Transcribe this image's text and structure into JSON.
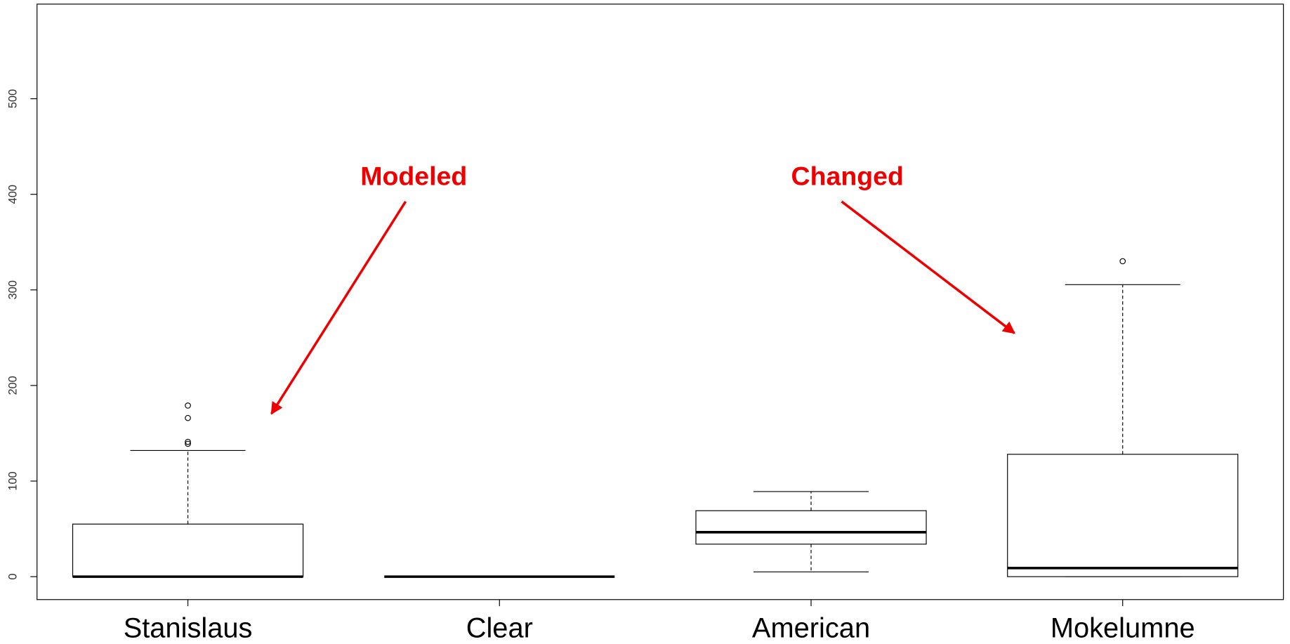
{
  "chart_data": {
    "type": "box",
    "categories": [
      "Stanislaus",
      "Clear",
      "American",
      "Mokelumne"
    ],
    "boxes": [
      {
        "min": 0,
        "q1": 0,
        "median": 0,
        "q3": 55,
        "max": 132,
        "outliers": [
          179,
          166,
          141,
          139
        ]
      },
      {
        "min": 0,
        "q1": 0,
        "median": 0,
        "q3": 0,
        "max": 0,
        "outliers": []
      },
      {
        "min": 5,
        "q1": 34,
        "median": 46.5,
        "q3": 69,
        "max": 89,
        "outliers": []
      },
      {
        "min": 0,
        "q1": 0,
        "median": 9,
        "q3": 128,
        "max": 305.5,
        "outliers": [
          330
        ]
      }
    ],
    "ylim": [
      -24,
      599
    ],
    "yticks": [
      0,
      100,
      200,
      300,
      400,
      500
    ],
    "color": "#000000",
    "annotations": [
      "Modeled",
      "Changed"
    ],
    "annotation_color": "#ee0000"
  }
}
